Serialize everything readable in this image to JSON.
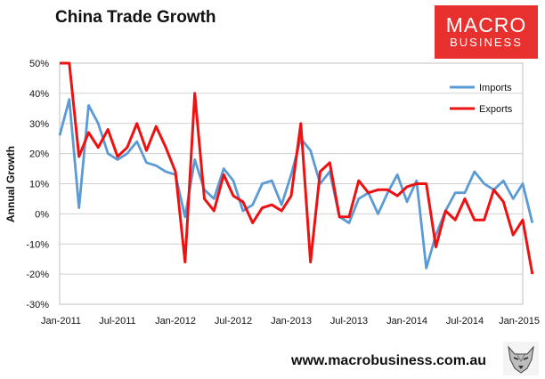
{
  "title": "China Trade Growth",
  "logo": {
    "line1": "MACRO",
    "line2": "BUSINESS"
  },
  "footer": {
    "url": "www.macrobusiness.com.au"
  },
  "chart_data": {
    "type": "line",
    "ylabel": "Annual Growth",
    "ylim": [
      -30,
      50
    ],
    "yticks": [
      "-30%",
      "-20%",
      "-10%",
      "0%",
      "10%",
      "20%",
      "30%",
      "40%",
      "50%"
    ],
    "xticks": [
      "Jan-2011",
      "Jul-2011",
      "Jan-2012",
      "Jul-2012",
      "Jan-2013",
      "Jul-2013",
      "Jan-2014",
      "Jul-2014",
      "Jan-2015"
    ],
    "x_start": "Jan-2011",
    "legend_position": "top-right",
    "colors": {
      "Imports": "#5b9bd5",
      "Exports": "#ee1111"
    },
    "series": [
      {
        "name": "Imports",
        "values": [
          26,
          38,
          2,
          36,
          30,
          20,
          18,
          20,
          24,
          17,
          16,
          14,
          13,
          -1,
          18,
          8,
          5,
          15,
          11,
          1,
          3,
          10,
          11,
          3,
          13,
          25,
          21,
          10,
          14,
          -1,
          -3,
          5,
          7,
          0,
          7,
          13,
          4,
          11,
          -18,
          -7,
          1,
          7,
          7,
          14,
          10,
          8,
          11,
          5,
          10,
          -3
        ]
      },
      {
        "name": "Exports",
        "values": [
          50,
          51,
          19,
          27,
          22,
          28,
          19,
          22,
          30,
          21,
          29,
          22,
          14,
          -16,
          40,
          5,
          1,
          13,
          6,
          4,
          -3,
          2,
          3,
          1,
          6,
          30,
          -16,
          14,
          17,
          -1,
          -1,
          11,
          7,
          8,
          8,
          6,
          9,
          10,
          10,
          -11,
          1,
          -2,
          5,
          -2,
          -2,
          8,
          4,
          -7,
          -2,
          -20
        ]
      }
    ]
  }
}
